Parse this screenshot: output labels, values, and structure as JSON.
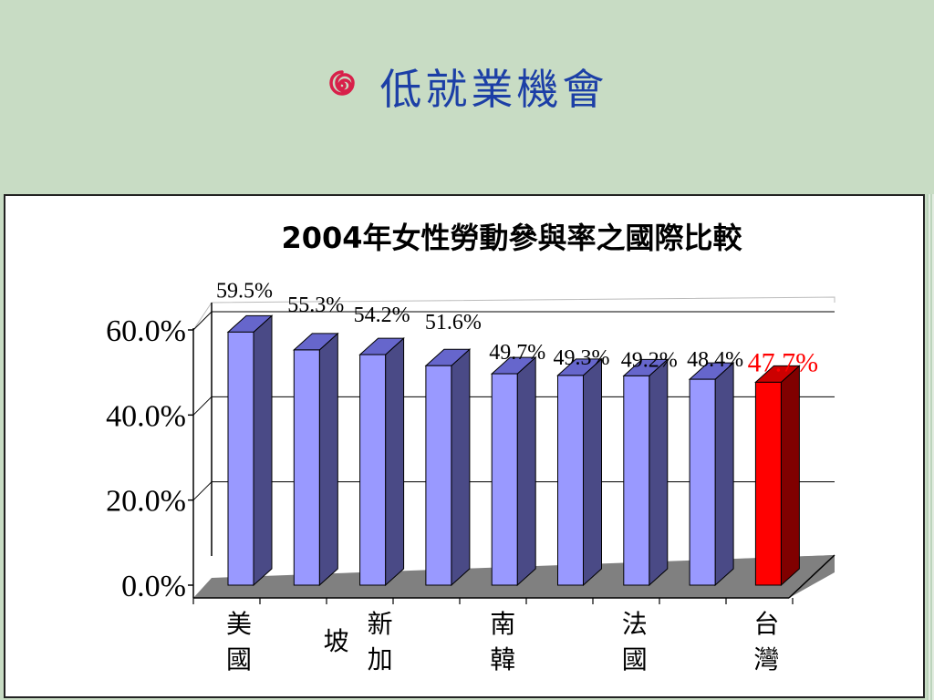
{
  "slide": {
    "title": "低就業機會",
    "bullet_icon": "swirl-icon",
    "colors": {
      "background": "#c8dcc4",
      "title": "#1c3fa6",
      "bullet": "#d8204a"
    }
  },
  "chart_data": {
    "type": "bar",
    "title": "2004年女性勞動參與率之國際比較",
    "xlabel": "",
    "ylabel": "",
    "ylim": [
      0,
      60
    ],
    "yticks": [
      "0.0%",
      "20.0%",
      "40.0%",
      "60.0%"
    ],
    "ytick_values": [
      0,
      20,
      40,
      60
    ],
    "grid": true,
    "values": [
      59.5,
      55.3,
      54.2,
      51.6,
      49.7,
      49.3,
      49.2,
      48.4,
      47.7
    ],
    "value_labels": [
      "59.5%",
      "55.3%",
      "54.2%",
      "51.6%",
      "49.7%",
      "49.3%",
      "49.2%",
      "48.4%",
      "47.7%"
    ],
    "category_labels": [
      {
        "index": 0,
        "text": "美國"
      },
      {
        "index": 2,
        "text": "新加坡"
      },
      {
        "index": 4,
        "text": "南韓"
      },
      {
        "index": 6,
        "text": "法國"
      },
      {
        "index": 8,
        "text": "台灣"
      }
    ],
    "highlight_index": 8,
    "colors": {
      "bar_front": "#9999ff",
      "bar_side": "#4a4a86",
      "bar_top": "#6666cc",
      "highlight_front": "#ff0000",
      "highlight_side": "#800000",
      "highlight_top": "#cc0000",
      "highlight_label": "#ff0000",
      "floor": "#808080"
    }
  }
}
